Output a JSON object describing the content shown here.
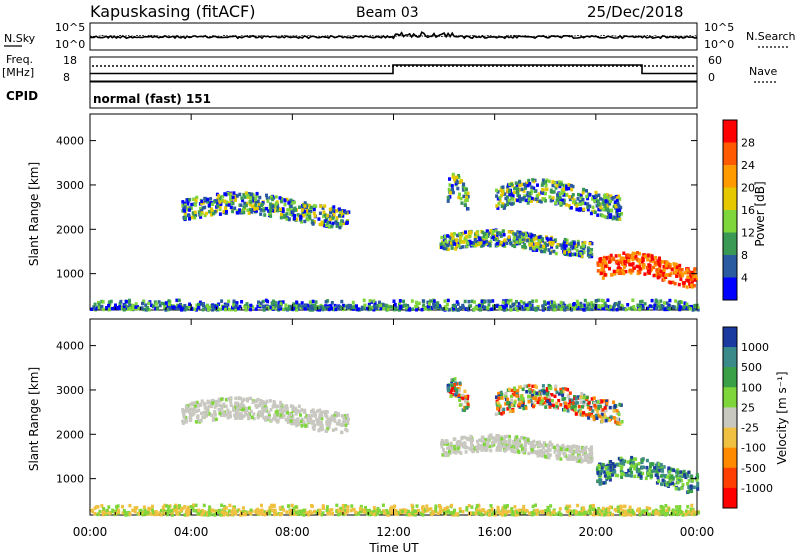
{
  "header": {
    "station": "Kapuskasing (fitACF)",
    "beam": "Beam 03",
    "date": "25/Dec/2018"
  },
  "noise_panel": {
    "left_label": "N.Sky",
    "right_label": "N.Search",
    "ticks_left": [
      "10^5",
      "10^0"
    ],
    "ticks_right": [
      "10^5",
      "10^0"
    ]
  },
  "freq_panel": {
    "left_label_line1": "Freq.",
    "left_label_line2": "[MHz]",
    "right_label": "Nave",
    "ticks_left": [
      "18",
      "8"
    ],
    "ticks_right": [
      "60",
      "0"
    ]
  },
  "cpid_panel": {
    "label": "CPID",
    "text": "normal (fast) 151"
  },
  "x_axis": {
    "label": "Time UT",
    "ticks": [
      "00:00",
      "04:00",
      "08:00",
      "12:00",
      "16:00",
      "20:00",
      "00:00"
    ]
  },
  "chart_data": [
    {
      "type": "heatmap",
      "panel": "power",
      "ylabel": "Slant Range [km]",
      "x_range_hours": [
        0,
        24
      ],
      "ylim": [
        180,
        4600
      ],
      "y_ticks": [
        1000,
        2000,
        3000,
        4000
      ],
      "colorbar": {
        "label": "Power [dB]",
        "ticks": [
          "28",
          "24",
          "20",
          "16",
          "12",
          "8",
          "4"
        ],
        "colors": [
          "#ff0000",
          "#ff5a00",
          "#ff9a00",
          "#e6c800",
          "#7fd63a",
          "#3a9a55",
          "#2a5aa0",
          "#0000ff"
        ]
      },
      "features": [
        {
          "t": [
            3.6,
            10.2
          ],
          "range_km": [
            2000,
            2850
          ],
          "level": "moderate"
        },
        {
          "t": [
            14.1,
            14.9
          ],
          "range_km": [
            2400,
            3300
          ],
          "level": "moderate"
        },
        {
          "t": [
            16.0,
            21.0
          ],
          "range_km": [
            2200,
            3150
          ],
          "level": "moderate"
        },
        {
          "t": [
            13.8,
            19.8
          ],
          "range_km": [
            1350,
            2000
          ],
          "level": "moderate"
        },
        {
          "t": [
            20.0,
            24.0
          ],
          "range_km": [
            650,
            1500
          ],
          "level": "strong"
        },
        {
          "t": [
            0.0,
            24.0
          ],
          "range_km": [
            180,
            400
          ],
          "level": "ground scatter"
        }
      ]
    },
    {
      "type": "heatmap",
      "panel": "velocity",
      "ylabel": "Slant Range [km]",
      "x_range_hours": [
        0,
        24
      ],
      "ylim": [
        180,
        4600
      ],
      "y_ticks": [
        1000,
        2000,
        3000,
        4000
      ],
      "colorbar": {
        "label": "Velocity [m s⁻¹]",
        "ticks": [
          "1000",
          "500",
          "100",
          "25",
          "-25",
          "-100",
          "-500",
          "-1000"
        ],
        "colors": [
          "#1a3aa0",
          "#3a8a8a",
          "#3aa048",
          "#7fd63a",
          "#c8c8c0",
          "#f0c040",
          "#ff8a00",
          "#ff4000",
          "#ff0000"
        ]
      },
      "features": [
        {
          "t": [
            3.6,
            10.2
          ],
          "range_km": [
            2000,
            2850
          ],
          "velocity": "near zero (grey)"
        },
        {
          "t": [
            14.1,
            14.9
          ],
          "range_km": [
            2400,
            3300
          ],
          "velocity": "mixed"
        },
        {
          "t": [
            16.0,
            21.0
          ],
          "range_km": [
            2200,
            3150
          ],
          "velocity": "mixed"
        },
        {
          "t": [
            13.8,
            19.8
          ],
          "range_km": [
            1350,
            2000
          ],
          "velocity": "near zero (grey)"
        },
        {
          "t": [
            20.0,
            24.0
          ],
          "range_km": [
            650,
            1500
          ],
          "velocity": "positive (green)"
        },
        {
          "t": [
            0.0,
            24.0
          ],
          "range_km": [
            180,
            400
          ],
          "velocity": "low"
        }
      ]
    }
  ]
}
